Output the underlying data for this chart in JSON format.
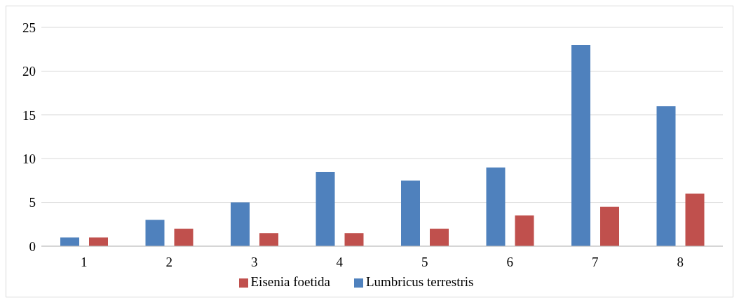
{
  "chart_data": {
    "type": "bar",
    "categories": [
      "1",
      "2",
      "3",
      "4",
      "5",
      "6",
      "7",
      "8"
    ],
    "series": [
      {
        "name": "Lumbricus terrestris",
        "color": "#4f81bd",
        "values": [
          1,
          3,
          5,
          8.5,
          7.5,
          9,
          23,
          16
        ]
      },
      {
        "name": "Eisenia foetida",
        "color": "#c0504d",
        "values": [
          1,
          2,
          1.5,
          1.5,
          2,
          3.5,
          4.5,
          6
        ]
      }
    ],
    "ylim": [
      0,
      25
    ],
    "yticks": [
      0,
      5,
      10,
      15,
      20,
      25
    ],
    "grid": "y",
    "legend": "bottom"
  }
}
